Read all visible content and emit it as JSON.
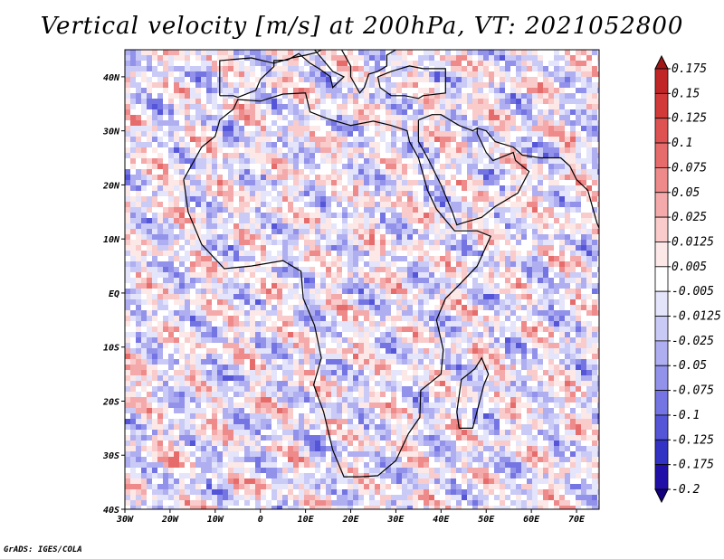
{
  "title": "Vertical velocity [m/s] at 200hPa, VT: 2021052800",
  "footer": "GrADS: IGES/COLA",
  "chart_data": {
    "type": "heatmap",
    "title": "Vertical velocity [m/s] at 200hPa, VT: 2021052800",
    "variable": "Vertical velocity",
    "units": "m/s",
    "level": "200hPa",
    "valid_time": "2021052800",
    "xlim": [
      -30,
      75
    ],
    "ylim": [
      -40,
      45
    ],
    "x_ticks": [
      {
        "value": -30,
        "label": "30W"
      },
      {
        "value": -20,
        "label": "20W"
      },
      {
        "value": -10,
        "label": "10W"
      },
      {
        "value": 0,
        "label": "0"
      },
      {
        "value": 10,
        "label": "10E"
      },
      {
        "value": 20,
        "label": "20E"
      },
      {
        "value": 30,
        "label": "30E"
      },
      {
        "value": 40,
        "label": "40E"
      },
      {
        "value": 50,
        "label": "50E"
      },
      {
        "value": 60,
        "label": "60E"
      },
      {
        "value": 70,
        "label": "70E"
      }
    ],
    "y_ticks": [
      {
        "value": 40,
        "label": "40N"
      },
      {
        "value": 30,
        "label": "30N"
      },
      {
        "value": 20,
        "label": "20N"
      },
      {
        "value": 10,
        "label": "10N"
      },
      {
        "value": 0,
        "label": "EQ"
      },
      {
        "value": -10,
        "label": "10S"
      },
      {
        "value": -20,
        "label": "20S"
      },
      {
        "value": -30,
        "label": "30S"
      },
      {
        "value": -40,
        "label": "40S"
      }
    ],
    "colorbar": {
      "boundaries": [
        "0.175",
        "0.15",
        "0.125",
        "0.1",
        "0.075",
        "0.05",
        "0.025",
        "0.0125",
        "0.005",
        "-0.005",
        "-0.0125",
        "-0.025",
        "-0.05",
        "-0.075",
        "-0.1",
        "-0.125",
        "-0.175",
        "-0.2"
      ],
      "colors": [
        "#a01818",
        "#c02626",
        "#d23a3a",
        "#de5252",
        "#e66c6c",
        "#ee8a8a",
        "#f4aaaa",
        "#f9cbcb",
        "#fde8e8",
        "#ffffff",
        "#e4e4fb",
        "#cacaf7",
        "#aeaef1",
        "#9292ea",
        "#7474e2",
        "#5555d8",
        "#3232c4",
        "#2010a8",
        "#140080"
      ]
    }
  }
}
